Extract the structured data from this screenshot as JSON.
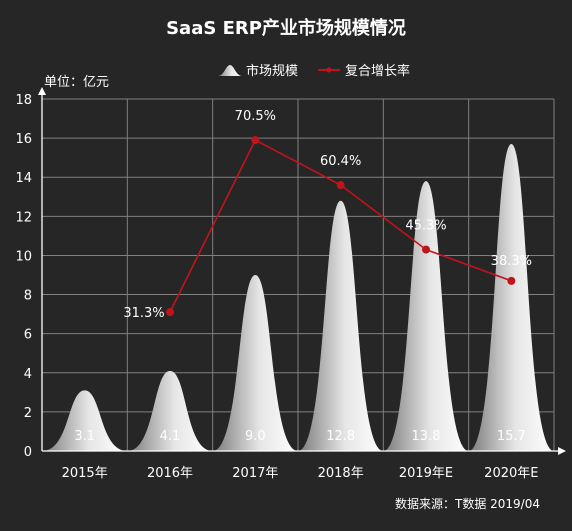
{
  "chart_data": {
    "type": "bar",
    "title": "SaaS ERP产业市场规模情况",
    "unit_label": "单位：亿元",
    "categories": [
      "2015年",
      "2016年",
      "2017年",
      "2018年",
      "2019年E",
      "2020年E"
    ],
    "series": [
      {
        "name": "市场规模",
        "type": "bar",
        "values": [
          3.1,
          4.1,
          9.0,
          12.8,
          13.8,
          15.7
        ],
        "value_labels": [
          "3.1",
          "4.1",
          "9.0",
          "12.8",
          "13.8",
          "15.7"
        ]
      },
      {
        "name": "复合增长率",
        "type": "line",
        "values": [
          null,
          31.3,
          70.5,
          60.4,
          45.3,
          38.3
        ],
        "value_labels": [
          "",
          "31.3%",
          "70.5%",
          "60.4%",
          "45.3%",
          "38.3%"
        ],
        "color": "#c0141b"
      }
    ],
    "y_axis": {
      "min": 0,
      "max": 18,
      "step": 2
    },
    "grid": true,
    "legend_position": "top-center",
    "source": "数据来源：T数据 2019/04"
  },
  "colors": {
    "background": "#262626",
    "grid": "#808080",
    "axis": "#ffffff",
    "line": "#c0141b"
  }
}
